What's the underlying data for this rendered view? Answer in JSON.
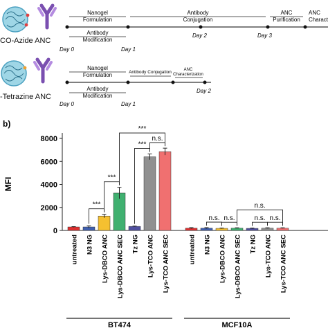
{
  "timeline_top": {
    "label": "CO-Azide ANC",
    "segments": [
      {
        "line1": "Nanogel",
        "line2": "Formulation"
      },
      {
        "line1": "Antibody",
        "line2": "Conjugation"
      },
      {
        "line1": "ANC",
        "line2": "Purification"
      },
      {
        "line1": "ANC",
        "line2": "Characte"
      }
    ],
    "below": {
      "line1": "Antibody",
      "line2": "Modification"
    },
    "days": [
      "Day 0",
      "Day 1",
      "Day 2",
      "Day 3"
    ]
  },
  "timeline_bottom": {
    "label": "-Tetrazine ANC",
    "segments": [
      {
        "line1": "Nanogel",
        "line2": "Formulation"
      },
      {
        "line1": "Antibody",
        "line2": "Conjugation"
      },
      {
        "line1": "ANC",
        "line2": "Characterization"
      }
    ],
    "below": {
      "line1": "Antibody",
      "line2": "Modification"
    },
    "days": [
      "Day 0",
      "Day 1",
      "Day 2"
    ]
  },
  "panel_label": "b)",
  "chart_data": {
    "type": "bar",
    "ylabel": "MFI",
    "ylim": [
      0,
      8000
    ],
    "yticks": [
      "0",
      "2000",
      "4000",
      "6000",
      "8000"
    ],
    "groups": [
      {
        "name": "BT474",
        "categories": [
          "untreated",
          "N3 NG",
          "Lys-DBCO ANC",
          "Lys-DBCO ANC SEC",
          "Tz NG",
          "Lys-TCO ANC",
          "Lys-TCO ANC SEC"
        ],
        "values": [
          300,
          300,
          1250,
          3250,
          350,
          6400,
          6850
        ],
        "errors": [
          30,
          100,
          150,
          500,
          30,
          250,
          300
        ],
        "colors": [
          "#e03030",
          "#4060b0",
          "#f5c030",
          "#40b070",
          "#5050a0",
          "#909090",
          "#f07070"
        ]
      },
      {
        "name": "MCF10A",
        "categories": [
          "untreated",
          "N3 NG",
          "Lys-DBCO ANC",
          "Lys-DBCO ANC SEC",
          "Tz NG",
          "Lys-TCO ANC",
          "Lys-TCO ANC SEC"
        ],
        "values": [
          200,
          200,
          180,
          200,
          180,
          200,
          200
        ],
        "errors": [
          40,
          40,
          30,
          30,
          30,
          30,
          30
        ],
        "colors": [
          "#e03030",
          "#4060b0",
          "#f5c030",
          "#40b070",
          "#5050a0",
          "#909090",
          "#f07070"
        ]
      }
    ],
    "significance": [
      {
        "group": 0,
        "from": 1,
        "to": 2,
        "label": "***"
      },
      {
        "group": 0,
        "from": 2,
        "to": 3,
        "label": "***"
      },
      {
        "group": 0,
        "from": 4,
        "to": 5,
        "label": "***"
      },
      {
        "group": 0,
        "from": 5,
        "to": 6,
        "label": "n.s."
      },
      {
        "group": 0,
        "from": 3,
        "to": 6,
        "label": "***"
      },
      {
        "group": 1,
        "from": 1,
        "to": 2,
        "label": "n.s."
      },
      {
        "group": 1,
        "from": 2,
        "to": 3,
        "label": "n.s."
      },
      {
        "group": 1,
        "from": 4,
        "to": 5,
        "label": "n.s."
      },
      {
        "group": 1,
        "from": 5,
        "to": 6,
        "label": "n.s."
      },
      {
        "group": 1,
        "from": 3,
        "to": 6,
        "label": "n.s."
      }
    ]
  }
}
